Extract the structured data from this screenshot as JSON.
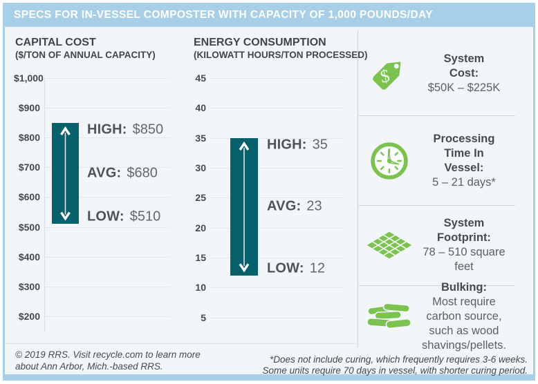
{
  "title": "SPECS FOR IN-VESSEL COMPOSTER WITH CAPACITY OF 1,000 POUNDS/DAY",
  "colors": {
    "header_bg": "#A7D0E8",
    "bar_teal": "#06616C",
    "icon_green": "#7CC24F",
    "background": "#F3F6F8"
  },
  "chart_data": [
    {
      "type": "bar",
      "subtype": "vertical-range-bar",
      "title": "CAPITAL COST",
      "subtitle": "($/TON OF ANNUAL CAPACITY)",
      "axis_ticks": [
        "$1,000",
        "$900",
        "$800",
        "$700",
        "$600",
        "$500",
        "$400",
        "$300",
        "$200"
      ],
      "axis_max": 1000,
      "axis_min": 200,
      "tick_interval": 100,
      "high": 850,
      "avg": 680,
      "low": 510,
      "annotations": [
        {
          "prefix": "HIGH:",
          "value": "$850"
        },
        {
          "prefix": "AVG:",
          "value": "$680"
        },
        {
          "prefix": "LOW:",
          "value": "$510"
        }
      ],
      "bar_color": "#06616C",
      "grid": true,
      "y_axis_line": true
    },
    {
      "type": "bar",
      "subtype": "vertical-range-bar",
      "title": "ENERGY CONSUMPTION",
      "subtitle": "(KILOWATT HOURS/TON PROCESSED)",
      "axis_ticks": [
        "45",
        "40",
        "35",
        "30",
        "25",
        "20",
        "15",
        "10",
        "5"
      ],
      "axis_max": 45,
      "axis_min": 5,
      "tick_interval": 5,
      "high": 35,
      "avg": 23,
      "low": 12,
      "annotations": [
        {
          "prefix": "HIGH:",
          "value": "35"
        },
        {
          "prefix": "AVG:",
          "value": "23"
        },
        {
          "prefix": "LOW:",
          "value": "12"
        }
      ],
      "bar_color": "#06616C",
      "grid": true,
      "y_axis_line": false
    }
  ],
  "specs": [
    {
      "icon": "price-tag-icon",
      "label": "System\nCost:",
      "value": "$50K – $225K"
    },
    {
      "icon": "clock-icon",
      "label": "Processing\nTime In\nVessel:",
      "value": "5 – 21 days*"
    },
    {
      "icon": "footprint-grid-icon",
      "label": "System\nFootprint:",
      "value": "78 – 510 square feet"
    },
    {
      "icon": "wood-pellets-icon",
      "label": "Bulking:",
      "value": "Most require carbon source, such as wood shavings/pellets."
    }
  ],
  "footer": {
    "left": "© 2019 RRS. Visit recycle.com to learn more\nabout Ann Arbor, Mich.-based RRS.",
    "footnote": "*Does not include curing, which frequently requires 3-6 weeks.\nSome units require 70 days in vessel, with shorter curing period."
  }
}
